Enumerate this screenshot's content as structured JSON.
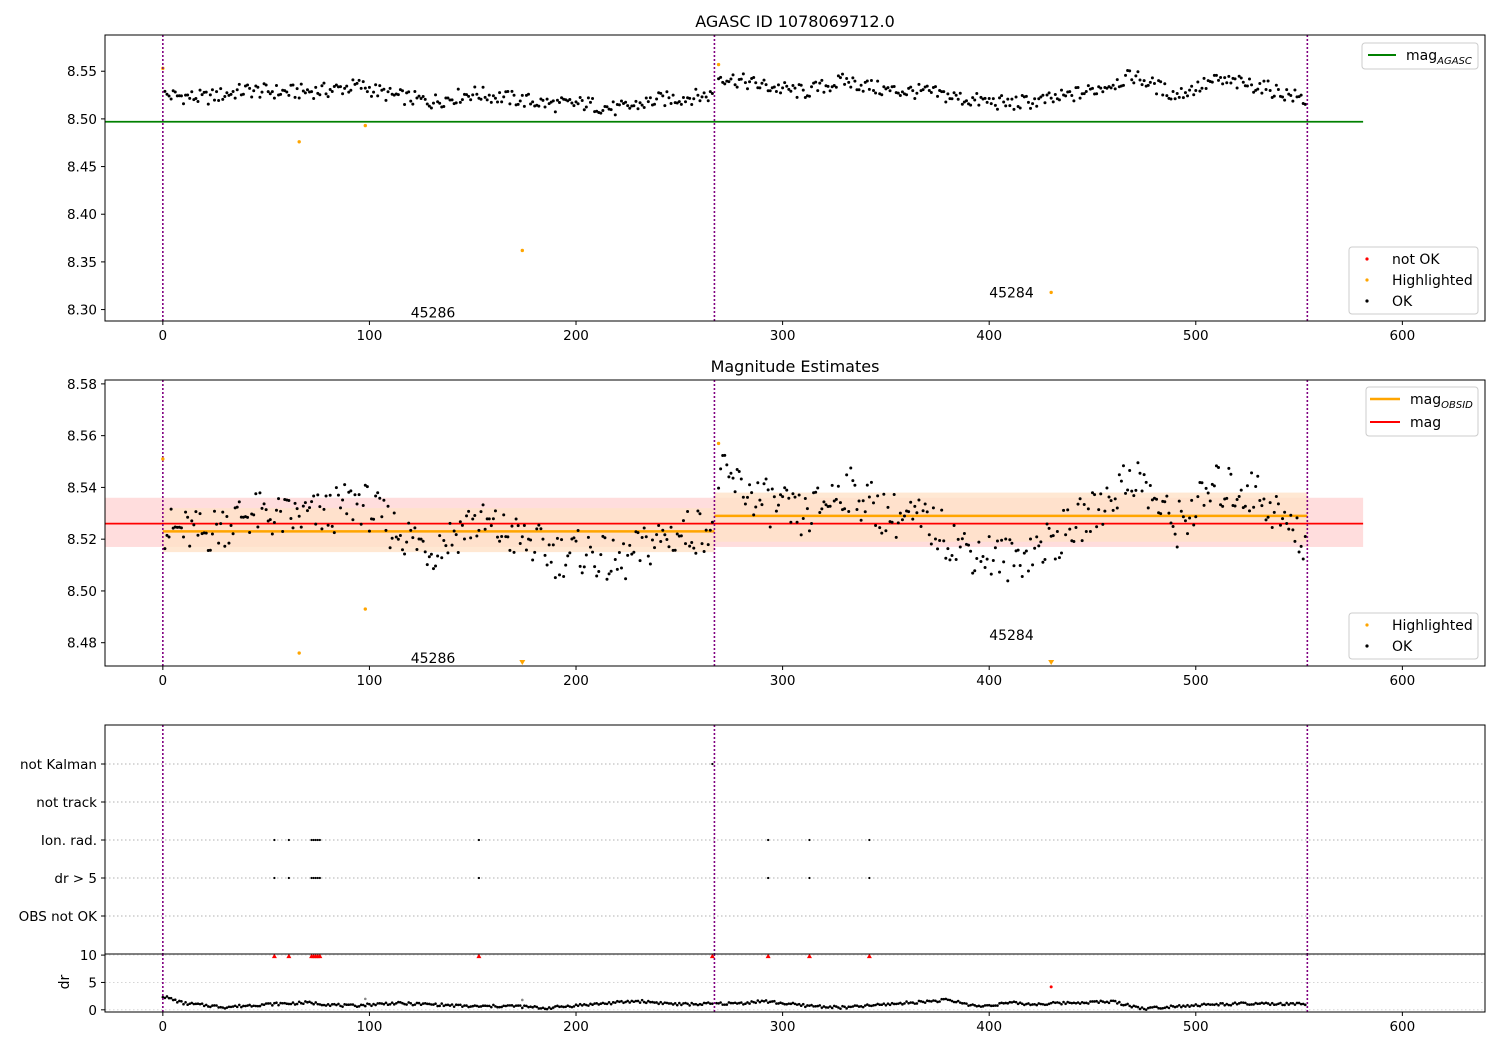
{
  "figure": {
    "title": "AGASC ID 1078069712.0"
  },
  "colors": {
    "ok": "#000000",
    "highlighted": "#ffa500",
    "not_ok": "#ff0000",
    "mag_agasc": "#008000",
    "mag_obsid": "#ffa500",
    "mag": "#ff0000",
    "obs_boundary": "#800080",
    "band_mag": "#ffdddd",
    "band_obsid": "#ffe2c8"
  },
  "chart_data": [
    {
      "type": "scatter",
      "title": "",
      "xlabel": "",
      "ylabel": "",
      "xlim": [
        -28,
        640
      ],
      "ylim": [
        8.288,
        8.588
      ],
      "xticks": [
        0,
        100,
        200,
        300,
        400,
        500,
        600
      ],
      "yticks": [
        "8.30",
        "8.35",
        "8.40",
        "8.45",
        "8.50",
        "8.55"
      ],
      "obs_boundaries": [
        0,
        267,
        554
      ],
      "obsid_labels": [
        {
          "text": "45286",
          "x": 120,
          "y": 8.297
        },
        {
          "text": "45284",
          "x": 400,
          "y": 8.318
        }
      ],
      "hlines": [
        {
          "name": "mag_AGASC",
          "y": 8.497,
          "x": [
            -28,
            581
          ]
        }
      ],
      "legend_lines": [
        {
          "label": "mag",
          "sub": "AGASC",
          "color_key": "mag_agasc"
        }
      ],
      "legend_points": [
        {
          "label": "not OK",
          "color_key": "not_ok"
        },
        {
          "label": "Highlighted",
          "color_key": "highlighted"
        },
        {
          "label": "OK",
          "color_key": "ok"
        }
      ],
      "legend_lines_loc": "top-right",
      "legend_points_loc": "bottom-right",
      "highlighted_points": [
        [
          0,
          8.553
        ],
        [
          66,
          8.476
        ],
        [
          98,
          8.493
        ],
        [
          174,
          8.362
        ],
        [
          269,
          8.557
        ],
        [
          430,
          8.318
        ]
      ],
      "ok_trend": [
        [
          1,
          8.525
        ],
        [
          20,
          8.522
        ],
        [
          40,
          8.53
        ],
        [
          60,
          8.528
        ],
        [
          80,
          8.53
        ],
        [
          95,
          8.535
        ],
        [
          110,
          8.525
        ],
        [
          130,
          8.518
        ],
        [
          150,
          8.527
        ],
        [
          170,
          8.521
        ],
        [
          190,
          8.515
        ],
        [
          205,
          8.516
        ],
        [
          220,
          8.51
        ],
        [
          240,
          8.52
        ],
        [
          266,
          8.525
        ],
        [
          269,
          8.545
        ],
        [
          290,
          8.535
        ],
        [
          310,
          8.528
        ],
        [
          330,
          8.54
        ],
        [
          350,
          8.53
        ],
        [
          370,
          8.528
        ],
        [
          390,
          8.52
        ],
        [
          410,
          8.516
        ],
        [
          430,
          8.52
        ],
        [
          450,
          8.53
        ],
        [
          470,
          8.545
        ],
        [
          490,
          8.525
        ],
        [
          510,
          8.54
        ],
        [
          530,
          8.535
        ],
        [
          553,
          8.52
        ]
      ]
    },
    {
      "type": "scatter",
      "title": "Magnitude Estimates",
      "xlabel": "",
      "ylabel": "",
      "xlim": [
        -28,
        640
      ],
      "ylim": [
        8.471,
        8.5815
      ],
      "xticks": [
        0,
        100,
        200,
        300,
        400,
        500,
        600
      ],
      "yticks": [
        "8.48",
        "8.50",
        "8.52",
        "8.54",
        "8.56",
        "8.58"
      ],
      "obs_boundaries": [
        0,
        267,
        554
      ],
      "obsid_labels": [
        {
          "text": "45286",
          "x": 120,
          "y": 8.474
        },
        {
          "text": "45284",
          "x": 400,
          "y": 8.483
        }
      ],
      "mag": {
        "y": 8.526,
        "band": [
          8.517,
          8.536
        ],
        "x": [
          -28,
          581
        ]
      },
      "mag_obsid": [
        {
          "x": [
            0,
            267
          ],
          "y": 8.523,
          "band": [
            8.515,
            8.532
          ]
        },
        {
          "x": [
            267,
            554
          ],
          "y": 8.529,
          "band": [
            8.519,
            8.538
          ]
        }
      ],
      "legend_lines": [
        {
          "label": "mag",
          "sub": "OBSID",
          "color_key": "mag_obsid"
        },
        {
          "label": "mag",
          "sub": "",
          "color_key": "mag"
        }
      ],
      "legend_points": [
        {
          "label": "Highlighted",
          "color_key": "highlighted"
        },
        {
          "label": "OK",
          "color_key": "ok"
        }
      ],
      "legend_lines_loc": "top-right",
      "legend_points_loc": "bottom-right",
      "highlighted_points": [
        [
          0,
          8.551
        ],
        [
          66,
          8.476
        ],
        [
          98,
          8.493
        ],
        [
          269,
          8.557
        ]
      ],
      "highlighted_below_range": [
        174,
        430
      ],
      "ok_trend": [
        [
          1,
          8.524
        ],
        [
          20,
          8.522
        ],
        [
          40,
          8.53
        ],
        [
          60,
          8.528
        ],
        [
          80,
          8.53
        ],
        [
          95,
          8.535
        ],
        [
          110,
          8.525
        ],
        [
          130,
          8.516
        ],
        [
          150,
          8.527
        ],
        [
          170,
          8.521
        ],
        [
          190,
          8.514
        ],
        [
          205,
          8.515
        ],
        [
          220,
          8.51
        ],
        [
          240,
          8.52
        ],
        [
          266,
          8.525
        ],
        [
          269,
          8.545
        ],
        [
          290,
          8.535
        ],
        [
          310,
          8.528
        ],
        [
          330,
          8.54
        ],
        [
          350,
          8.53
        ],
        [
          370,
          8.526
        ],
        [
          390,
          8.516
        ],
        [
          410,
          8.512
        ],
        [
          430,
          8.519
        ],
        [
          450,
          8.53
        ],
        [
          470,
          8.545
        ],
        [
          490,
          8.525
        ],
        [
          510,
          8.54
        ],
        [
          530,
          8.538
        ],
        [
          553,
          8.518
        ]
      ]
    },
    {
      "type": "scatter",
      "title": "",
      "xlabel": "",
      "ylabel": "",
      "xlim": [
        -28,
        640
      ],
      "flag_rows": [
        "not Kalman",
        "not track",
        "Ion. rad.",
        "dr > 5",
        "OBS not OK"
      ],
      "flag_points": {
        "not Kalman": [
          266
        ],
        "not track": [],
        "Ion. rad.": [
          54,
          61,
          72,
          73,
          74,
          75,
          76,
          153,
          293,
          313,
          342
        ],
        "dr > 5": [
          54,
          61,
          72,
          73,
          74,
          75,
          76,
          153,
          293,
          313,
          342
        ],
        "OBS not OK": []
      },
      "obs_boundaries": [
        0,
        267,
        554
      ]
    },
    {
      "type": "scatter",
      "title": "",
      "xlabel": "",
      "ylabel": "dr",
      "xlim": [
        -28,
        640
      ],
      "ylim": [
        -0.4,
        10.2
      ],
      "xticks": [
        0,
        100,
        200,
        300,
        400,
        500,
        600
      ],
      "yticks": [
        "0",
        "5",
        "10"
      ],
      "obs_boundaries": [
        0,
        267,
        554
      ],
      "clipped_red_x": [
        54,
        61,
        72,
        73,
        74,
        75,
        76,
        153,
        266,
        293,
        313,
        342
      ],
      "clipped_at": 10,
      "red_points": [
        [
          430,
          4.2
        ]
      ],
      "grey_points": [
        [
          98,
          2.0
        ],
        [
          174,
          1.8
        ]
      ],
      "ok_trend": [
        [
          0,
          2.5
        ],
        [
          10,
          1.2
        ],
        [
          30,
          0.5
        ],
        [
          50,
          1.0
        ],
        [
          70,
          1.3
        ],
        [
          90,
          0.7
        ],
        [
          110,
          1.2
        ],
        [
          130,
          1.0
        ],
        [
          150,
          0.6
        ],
        [
          170,
          0.7
        ],
        [
          185,
          0.3
        ],
        [
          200,
          0.8
        ],
        [
          230,
          1.6
        ],
        [
          250,
          1.0
        ],
        [
          266,
          1.1
        ],
        [
          280,
          1.2
        ],
        [
          290,
          1.6
        ],
        [
          310,
          0.8
        ],
        [
          330,
          0.4
        ],
        [
          350,
          1.0
        ],
        [
          380,
          1.8
        ],
        [
          395,
          0.6
        ],
        [
          410,
          1.3
        ],
        [
          420,
          1.0
        ],
        [
          440,
          1.3
        ],
        [
          460,
          1.5
        ],
        [
          475,
          0.2
        ],
        [
          490,
          0.7
        ],
        [
          520,
          1.1
        ],
        [
          553,
          1.0
        ]
      ]
    }
  ]
}
